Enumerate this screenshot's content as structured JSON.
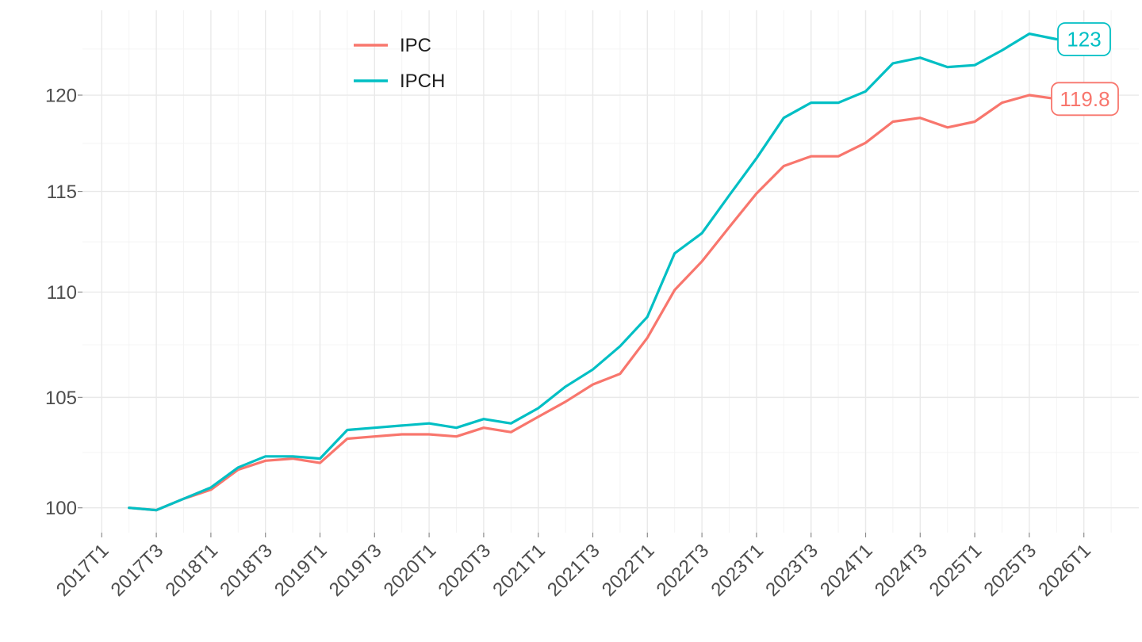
{
  "chart_data": {
    "type": "line",
    "title": "",
    "xlabel": "",
    "ylabel": "",
    "y_scale": "log10",
    "y_axis": {
      "ticks": [
        100,
        105,
        110,
        115,
        120
      ],
      "tick_labels": [
        "100",
        "105",
        "110",
        "115",
        "120"
      ],
      "minor_ticks": [
        102.47,
        107.47,
        112.47,
        117.47,
        122.47
      ],
      "range_px_note": "log scale, 100..123 visible"
    },
    "x_axis": {
      "tick_labels": [
        "2017T1",
        "2017T3",
        "2018T1",
        "2018T3",
        "2019T1",
        "2019T3",
        "2020T1",
        "2020T3",
        "2021T1",
        "2021T3",
        "2022T1",
        "2022T3",
        "2023T1",
        "2023T3",
        "2024T1",
        "2024T3",
        "2025T1",
        "2025T3",
        "2026T1"
      ],
      "ticks_every_n_quarters": 2
    },
    "periods": [
      "2017T2",
      "2017T3",
      "2017T4",
      "2018T1",
      "2018T2",
      "2018T3",
      "2018T4",
      "2019T1",
      "2019T2",
      "2019T3",
      "2019T4",
      "2020T1",
      "2020T2",
      "2020T3",
      "2020T4",
      "2021T1",
      "2021T2",
      "2021T3",
      "2021T4",
      "2022T1",
      "2022T2",
      "2022T3",
      "2022T4",
      "2023T1",
      "2023T2",
      "2023T3",
      "2023T4",
      "2024T1",
      "2024T2",
      "2024T3",
      "2024T4",
      "2025T1",
      "2025T2",
      "2025T3",
      "2025T4"
    ],
    "series": [
      {
        "name": "IPC",
        "color": "#F8766D",
        "end_label": "119.8",
        "values": [
          100.0,
          99.9,
          100.4,
          100.8,
          101.7,
          102.1,
          102.2,
          102.0,
          103.1,
          103.2,
          103.3,
          103.3,
          103.2,
          103.6,
          103.4,
          104.1,
          104.8,
          105.6,
          106.1,
          107.8,
          110.1,
          111.5,
          113.2,
          114.9,
          116.3,
          116.8,
          116.8,
          117.5,
          118.6,
          118.8,
          118.3,
          118.6,
          119.6,
          120.0,
          119.8
        ]
      },
      {
        "name": "IPCH",
        "color": "#00BFC4",
        "end_label": "123",
        "values": [
          100.0,
          99.9,
          100.4,
          100.9,
          101.8,
          102.3,
          102.3,
          102.2,
          103.5,
          103.6,
          103.7,
          103.8,
          103.6,
          104.0,
          103.8,
          104.5,
          105.5,
          106.3,
          107.4,
          108.8,
          111.9,
          112.9,
          114.8,
          116.7,
          118.8,
          119.6,
          119.6,
          120.2,
          121.7,
          122.0,
          121.5,
          121.6,
          122.4,
          123.3,
          123.0
        ]
      }
    ],
    "legend": {
      "position": "inset-top-left",
      "items": [
        "IPC",
        "IPCH"
      ]
    },
    "grid": true
  },
  "style": {
    "background": "#ffffff",
    "grid_major_color": "#e9e9e9",
    "grid_minor_color": "#f4f4f4",
    "axis_text_color": "#4d4d4d",
    "legend_text_color": "#1f1f1f",
    "tick_mark_color": "#8c8c8c",
    "ipc_color": "#F8766D",
    "ipch_color": "#00BFC4"
  }
}
